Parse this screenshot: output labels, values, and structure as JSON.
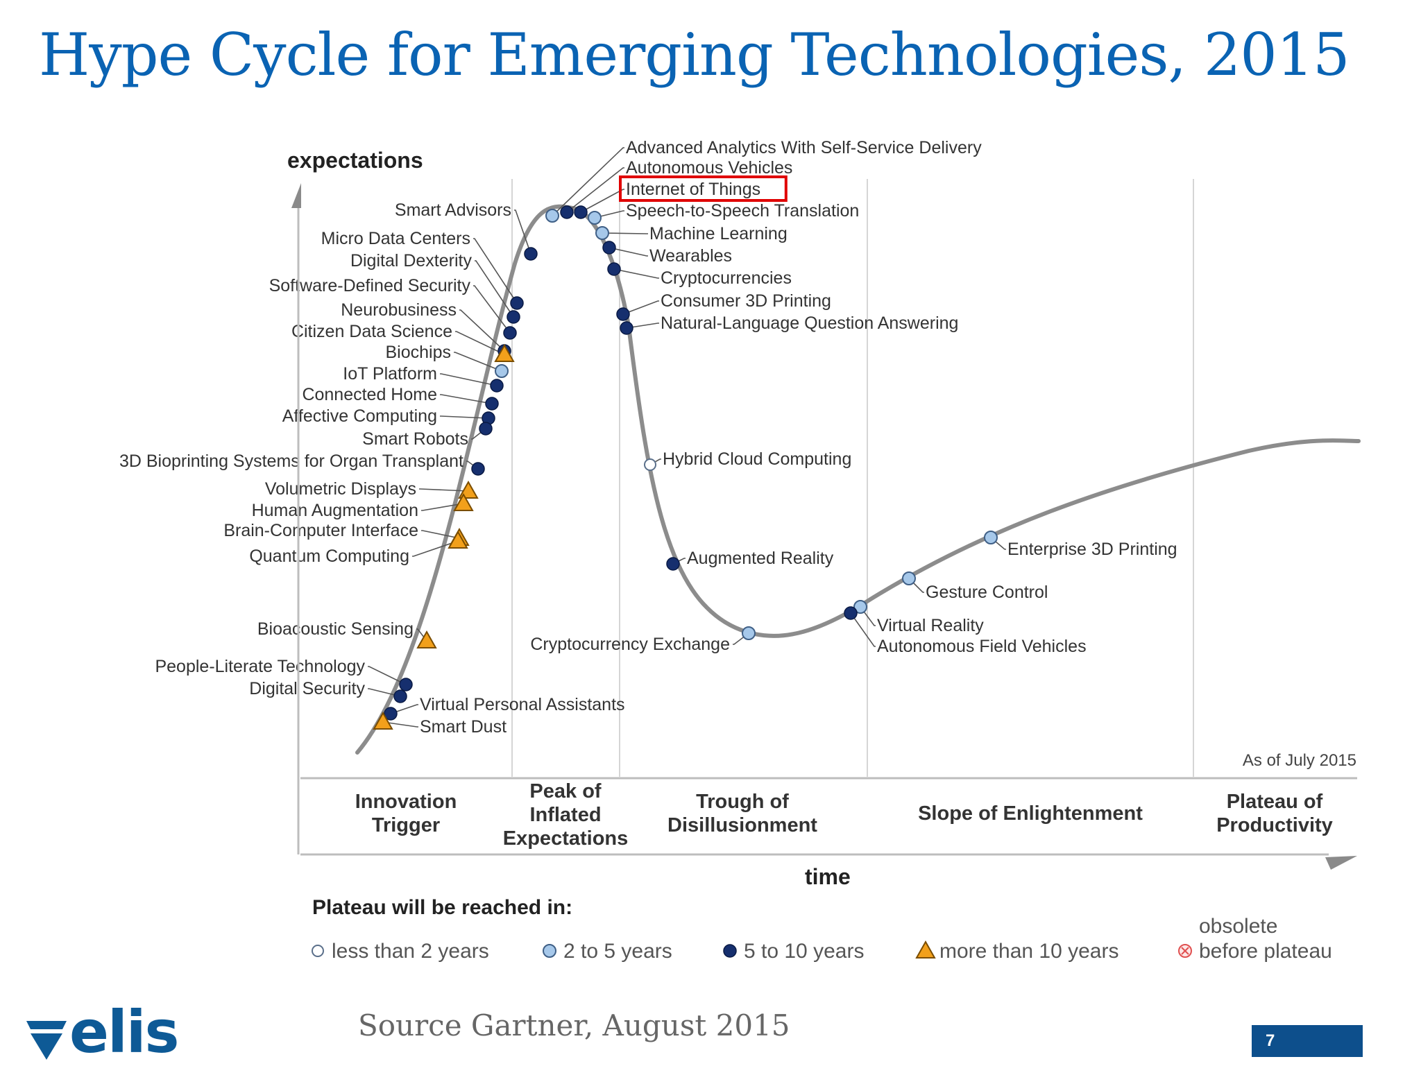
{
  "title": "Hype Cycle for Emerging Technologies, 2015",
  "axes": {
    "y_label": "expectations",
    "x_label": "time"
  },
  "as_of": "As of July 2015",
  "phases": [
    {
      "lines": [
        "Innovation",
        "Trigger"
      ]
    },
    {
      "lines": [
        "Peak of",
        "Inflated",
        "Expectations"
      ]
    },
    {
      "lines": [
        "Trough of",
        "Disillusionment"
      ]
    },
    {
      "lines": [
        "Slope of Enlightenment"
      ]
    },
    {
      "lines": [
        "Plateau of",
        "Productivity"
      ]
    }
  ],
  "highlighted_technology": "Internet of Things",
  "technologies": [
    {
      "name": "Advanced Analytics With Self-Service Delivery",
      "plateau": "2-5"
    },
    {
      "name": "Autonomous Vehicles",
      "plateau": "5-10"
    },
    {
      "name": "Internet of Things",
      "plateau": "5-10"
    },
    {
      "name": "Speech-to-Speech Translation",
      "plateau": "2-5"
    },
    {
      "name": "Machine Learning",
      "plateau": "2-5"
    },
    {
      "name": "Wearables",
      "plateau": "5-10"
    },
    {
      "name": "Cryptocurrencies",
      "plateau": "5-10"
    },
    {
      "name": "Consumer 3D Printing",
      "plateau": "5-10"
    },
    {
      "name": "Natural-Language Question Answering",
      "plateau": "5-10"
    },
    {
      "name": "Smart Advisors",
      "plateau": "5-10"
    },
    {
      "name": "Micro Data Centers",
      "plateau": "5-10"
    },
    {
      "name": "Digital Dexterity",
      "plateau": "5-10"
    },
    {
      "name": "Software-Defined Security",
      "plateau": "5-10"
    },
    {
      "name": "Neurobusiness",
      "plateau": "5-10"
    },
    {
      "name": "Citizen Data Science",
      "plateau": "more than 10"
    },
    {
      "name": "Biochips",
      "plateau": "2-5"
    },
    {
      "name": "IoT Platform",
      "plateau": "5-10"
    },
    {
      "name": "Connected Home",
      "plateau": "5-10"
    },
    {
      "name": "Affective Computing",
      "plateau": "5-10"
    },
    {
      "name": "Smart Robots",
      "plateau": "5-10"
    },
    {
      "name": "3D Bioprinting Systems for Organ Transplant",
      "plateau": "5-10"
    },
    {
      "name": "Volumetric Displays",
      "plateau": "more than 10"
    },
    {
      "name": "Human Augmentation",
      "plateau": "more than 10"
    },
    {
      "name": "Brain-Computer Interface",
      "plateau": "more than 10"
    },
    {
      "name": "Quantum Computing",
      "plateau": "more than 10"
    },
    {
      "name": "Bioacoustic Sensing",
      "plateau": "more than 10"
    },
    {
      "name": "People-Literate Technology",
      "plateau": "5-10"
    },
    {
      "name": "Digital Security",
      "plateau": "5-10"
    },
    {
      "name": "Virtual Personal Assistants",
      "plateau": "5-10"
    },
    {
      "name": "Smart Dust",
      "plateau": "more than 10"
    },
    {
      "name": "Hybrid Cloud Computing",
      "plateau": "less than 2"
    },
    {
      "name": "Augmented Reality",
      "plateau": "5-10"
    },
    {
      "name": "Cryptocurrency Exchange",
      "plateau": "2-5"
    },
    {
      "name": "Virtual Reality",
      "plateau": "2-5"
    },
    {
      "name": "Autonomous Field Vehicles",
      "plateau": "5-10"
    },
    {
      "name": "Gesture Control",
      "plateau": "2-5"
    },
    {
      "name": "Enterprise 3D Printing",
      "plateau": "2-5"
    }
  ],
  "legend": {
    "title": "Plateau will be reached in:",
    "items": [
      {
        "key": "less than 2",
        "label": "less than 2 years"
      },
      {
        "key": "2-5",
        "label": "2 to 5 years"
      },
      {
        "key": "5-10",
        "label": "5 to 10 years"
      },
      {
        "key": "more than 10",
        "label": "more than 10 years"
      },
      {
        "key": "obsolete",
        "lines": [
          "obsolete",
          "before plateau"
        ]
      }
    ]
  },
  "source": "Source Gartner, August 2015",
  "logo_text": "elis",
  "page_number": "7",
  "colors": {
    "title": "#0a63b3",
    "curve": "#8c8c8c",
    "marker_dark": "#162f6e",
    "marker_light": "#a6c8ea",
    "marker_triangle": "#f2a01b",
    "highlight_box": "#e00000",
    "page_box": "#0d4f8c"
  }
}
